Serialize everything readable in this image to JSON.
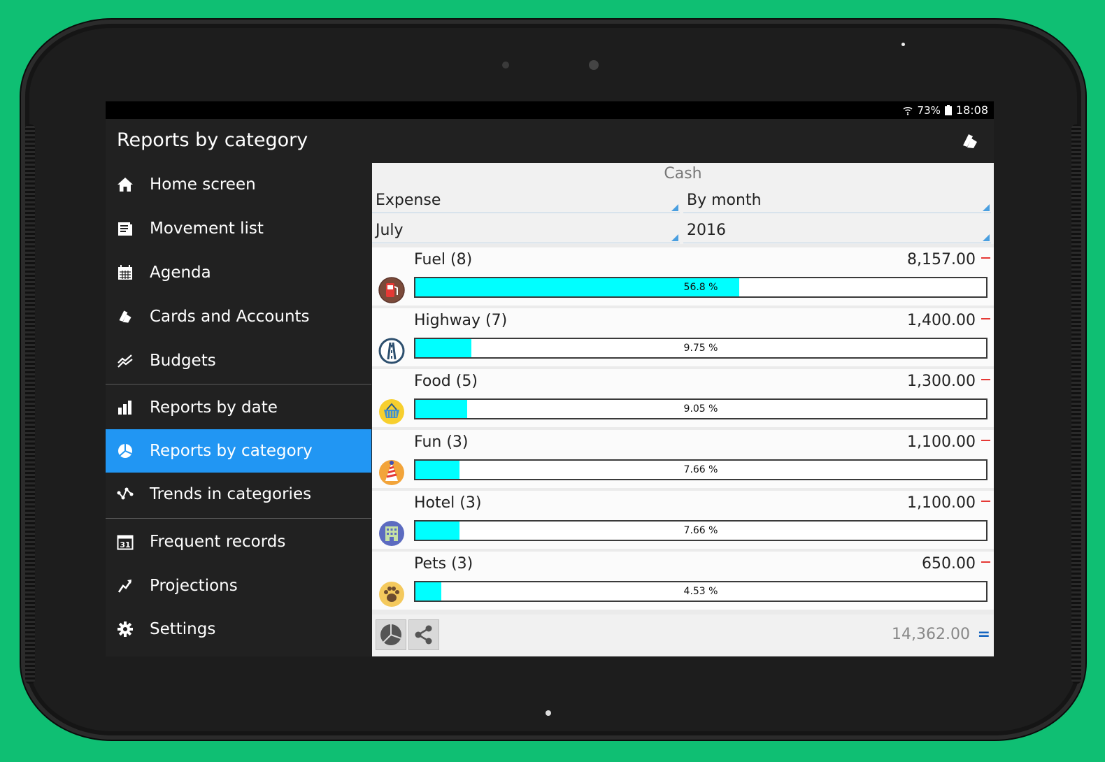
{
  "statusbar": {
    "battery": "73%",
    "time": "18:08"
  },
  "appbar": {
    "title": "Reports by category",
    "action_icon": "cards-icon"
  },
  "nav": [
    {
      "id": "home-screen",
      "label": "Home screen",
      "icon": "home-icon"
    },
    {
      "id": "movement-list",
      "label": "Movement list",
      "icon": "list-icon"
    },
    {
      "id": "agenda",
      "label": "Agenda",
      "icon": "calendar-icon"
    },
    {
      "id": "cards-and-accounts",
      "label": "Cards and Accounts",
      "icon": "cards-icon"
    },
    {
      "id": "budgets",
      "label": "Budgets",
      "icon": "budget-chart-icon"
    },
    {
      "id": "reports-by-date",
      "label": "Reports by date",
      "icon": "bar-chart-icon"
    },
    {
      "id": "reports-by-category",
      "label": "Reports by category",
      "icon": "pie-chart-icon",
      "active": true
    },
    {
      "id": "trends-in-categories",
      "label": "Trends in categories",
      "icon": "trend-nodes-icon"
    },
    {
      "id": "frequent-records",
      "label": "Frequent records",
      "icon": "calendar-31-icon"
    },
    {
      "id": "projections",
      "label": "Projections",
      "icon": "projection-icon"
    },
    {
      "id": "settings",
      "label": "Settings",
      "icon": "gear-icon"
    }
  ],
  "filters": {
    "account": "Cash",
    "type": "Expense",
    "period": "By month",
    "month": "July",
    "year": "2016"
  },
  "categories": [
    {
      "name": "Fuel (8)",
      "amount": "8,157.00",
      "percent_label": "56.8 %",
      "percent": 56.8,
      "icon": "fuel-pump-icon"
    },
    {
      "name": "Highway (7)",
      "amount": "1,400.00",
      "percent_label": "9.75 %",
      "percent": 9.75,
      "icon": "highway-icon"
    },
    {
      "name": "Food (5)",
      "amount": "1,300.00",
      "percent_label": "9.05 %",
      "percent": 9.05,
      "icon": "basket-icon"
    },
    {
      "name": "Fun (3)",
      "amount": "1,100.00",
      "percent_label": "7.66 %",
      "percent": 7.66,
      "icon": "party-hat-icon"
    },
    {
      "name": "Hotel (3)",
      "amount": "1,100.00",
      "percent_label": "7.66 %",
      "percent": 7.66,
      "icon": "hotel-icon"
    },
    {
      "name": "Pets (3)",
      "amount": "650.00",
      "percent_label": "4.53 %",
      "percent": 4.53,
      "icon": "paw-icon"
    }
  ],
  "footer": {
    "total": "14,362.00",
    "total_sign": "="
  },
  "colors": {
    "accent": "#2196f3",
    "bar_fill": "#00ffff",
    "expense_sign": "#e53935",
    "background": "#0fbf73"
  }
}
